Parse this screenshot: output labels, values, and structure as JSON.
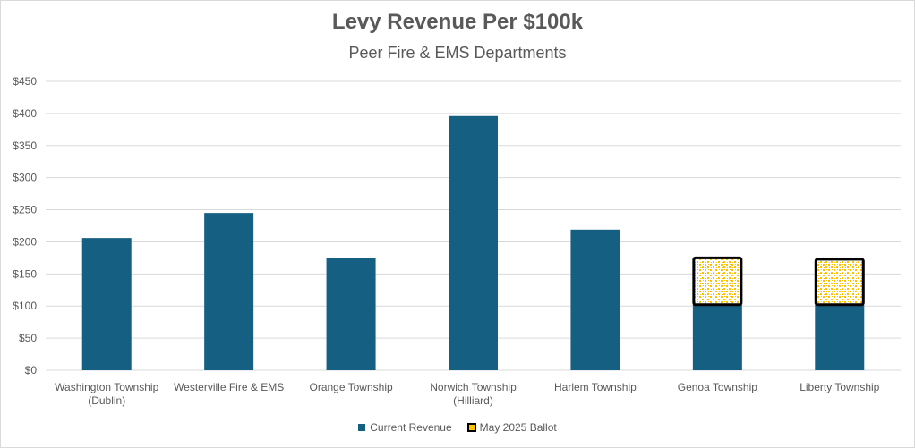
{
  "chart_data": {
    "type": "bar",
    "stacked": true,
    "title": "Levy Revenue Per $100k",
    "subtitle": "Peer Fire & EMS Departments",
    "xlabel": "",
    "ylabel": "",
    "ylim": [
      0,
      450
    ],
    "yticks": [
      0,
      50,
      100,
      150,
      200,
      250,
      300,
      350,
      400,
      450
    ],
    "ytick_labels": [
      "$0",
      "$50",
      "$100",
      "$150",
      "$200",
      "$250",
      "$300",
      "$350",
      "$400",
      "$450"
    ],
    "categories": [
      [
        "Washington Township",
        "(Dublin)"
      ],
      [
        "Westerville Fire & EMS"
      ],
      [
        "Orange Township"
      ],
      [
        "Norwich Township",
        "(Hilliard)"
      ],
      [
        "Harlem Township"
      ],
      [
        "Genoa Township"
      ],
      [
        "Liberty Township"
      ]
    ],
    "series": [
      {
        "name": "Current Revenue",
        "color": "#156082",
        "values": [
          206,
          245,
          175,
          396,
          219,
          102,
          102
        ]
      },
      {
        "name": "May 2025 Ballot",
        "color": "#ffc000",
        "values": [
          0,
          0,
          0,
          0,
          0,
          73,
          71
        ]
      }
    ],
    "grid": true,
    "legend": "bottom"
  }
}
